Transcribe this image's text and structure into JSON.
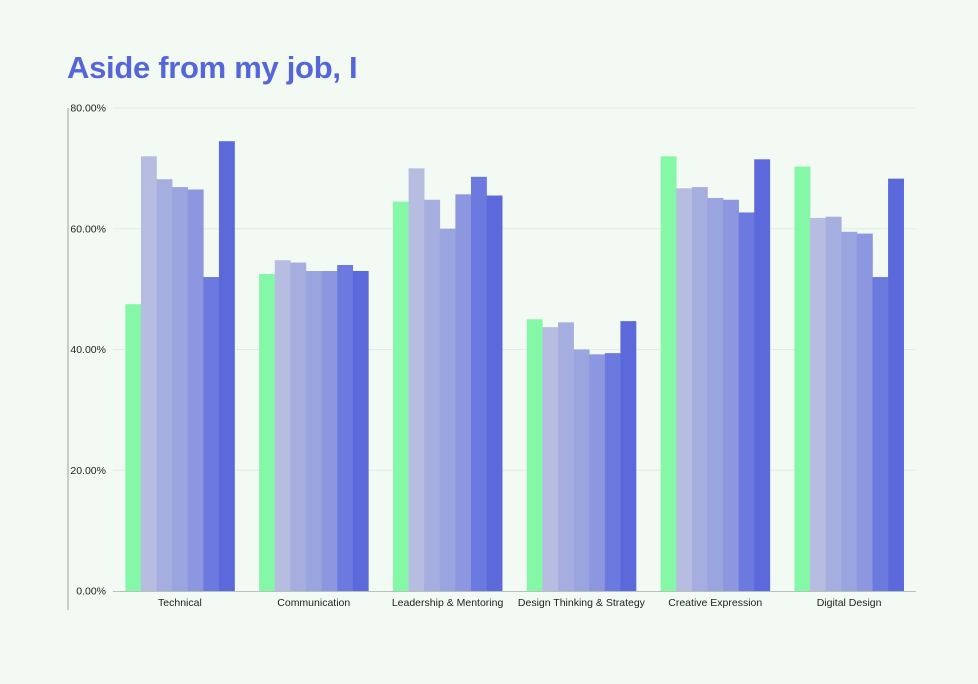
{
  "title": "Aside from my job, I",
  "chart_data": {
    "type": "bar",
    "title": "Aside from my job, I",
    "xlabel": "",
    "ylabel": "",
    "ylim": [
      0,
      80
    ],
    "yticks": [
      "0.00%",
      "20.00%",
      "40.00%",
      "60.00%",
      "80.00%"
    ],
    "grid": true,
    "categories": [
      "Technical",
      "Communication",
      "Leadership & Mentoring",
      "Design Thinking & Strategy",
      "Creative Expression",
      "Digital Design"
    ],
    "series_colors": [
      "#84f8a7",
      "#b6bde0",
      "#a5aede",
      "#9aa4de",
      "#8c97df",
      "#6c7ae0",
      "#5b69db"
    ],
    "series": [
      {
        "values": [
          47.5,
          52.5,
          64.5,
          45.0,
          72.0,
          70.3
        ]
      },
      {
        "values": [
          72.0,
          54.8,
          70.0,
          43.7,
          66.7,
          61.8
        ]
      },
      {
        "values": [
          68.2,
          54.4,
          64.8,
          44.5,
          66.9,
          62.0
        ]
      },
      {
        "values": [
          66.9,
          53.0,
          60.0,
          40.0,
          65.1,
          59.5
        ]
      },
      {
        "values": [
          66.5,
          53.0,
          65.7,
          39.2,
          64.8,
          59.2
        ]
      },
      {
        "values": [
          52.0,
          54.0,
          68.6,
          39.4,
          62.7,
          52.0
        ]
      },
      {
        "values": [
          74.5,
          53.0,
          65.5,
          44.7,
          71.5,
          68.3
        ]
      }
    ]
  }
}
